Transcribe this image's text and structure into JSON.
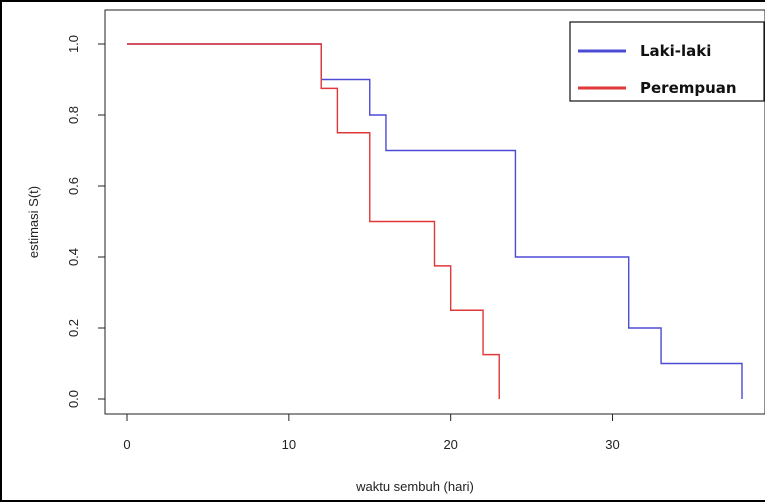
{
  "chart_data": {
    "type": "line",
    "step": true,
    "xlabel": "waktu sembuh (hari)",
    "ylabel": "estimasi S(t)",
    "xlim": [
      0,
      38
    ],
    "ylim": [
      0,
      1
    ],
    "xticks": [
      0,
      10,
      20,
      30
    ],
    "yticks": [
      "0.0",
      "0.2",
      "0.4",
      "0.6",
      "0.8",
      "1.0"
    ],
    "grid": false,
    "legend_position": "top-right",
    "series": [
      {
        "name": "Laki-laki",
        "color": "#4b4bd6",
        "x": [
          0,
          12,
          15,
          16,
          24,
          31,
          33,
          38
        ],
        "y": [
          1.0,
          0.9,
          0.8,
          0.7,
          0.4,
          0.2,
          0.1,
          0.0
        ]
      },
      {
        "name": "Perempuan",
        "color": "#e03838",
        "x": [
          0,
          12,
          13,
          15,
          19,
          20,
          22,
          23
        ],
        "y": [
          1.0,
          0.875,
          0.75,
          0.5,
          0.375,
          0.25,
          0.125,
          0.0
        ]
      }
    ]
  }
}
